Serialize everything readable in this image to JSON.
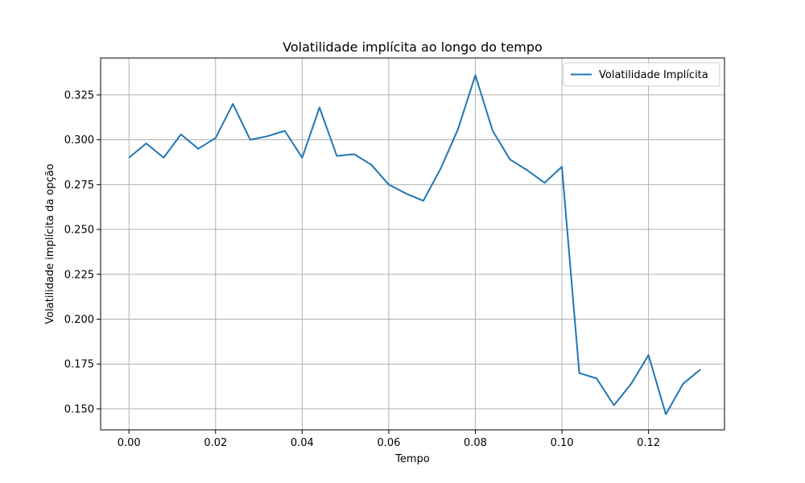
{
  "chart_data": {
    "type": "line",
    "title": "Volatilidade implícita ao longo do tempo",
    "xlabel": "Tempo",
    "ylabel": "Volatilidade implícita da opção",
    "xlim": [
      -0.00655,
      0.13755
    ],
    "ylim": [
      0.1383,
      0.3456
    ],
    "xticks": [
      0.0,
      0.02,
      0.04,
      0.06,
      0.08,
      0.1,
      0.12
    ],
    "xtick_labels": [
      "0.00",
      "0.02",
      "0.04",
      "0.06",
      "0.08",
      "0.10",
      "0.12"
    ],
    "yticks": [
      0.15,
      0.175,
      0.2,
      0.225,
      0.25,
      0.275,
      0.3,
      0.325
    ],
    "ytick_labels": [
      "0.150",
      "0.175",
      "0.200",
      "0.225",
      "0.250",
      "0.275",
      "0.300",
      "0.325"
    ],
    "grid": true,
    "legend_position": "top-right",
    "series": [
      {
        "name": "Volatilidade Implícita",
        "color": "#1f77b4",
        "x": [
          0.0,
          0.004,
          0.008,
          0.012,
          0.016,
          0.02,
          0.024,
          0.028,
          0.032,
          0.036,
          0.04,
          0.044,
          0.048,
          0.052,
          0.056,
          0.06,
          0.064,
          0.068,
          0.072,
          0.076,
          0.08,
          0.084,
          0.088,
          0.092,
          0.096,
          0.1,
          0.104,
          0.108,
          0.112,
          0.116,
          0.12,
          0.124,
          0.128,
          0.132
        ],
        "y": [
          0.29,
          0.298,
          0.29,
          0.303,
          0.295,
          0.301,
          0.32,
          0.3,
          0.302,
          0.305,
          0.29,
          0.318,
          0.291,
          0.292,
          0.286,
          0.275,
          0.27,
          0.266,
          0.284,
          0.306,
          0.336,
          0.305,
          0.289,
          0.283,
          0.276,
          0.285,
          0.17,
          0.167,
          0.152,
          0.164,
          0.18,
          0.147,
          0.164,
          0.172
        ]
      }
    ]
  }
}
